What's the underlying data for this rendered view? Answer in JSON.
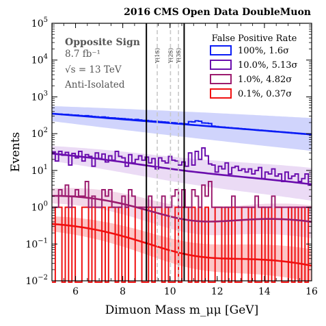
{
  "chart_data": {
    "type": "histogram",
    "title": "2016 CMS Open Data DoubleMuon",
    "xlabel": "Dimuon Mass m_μμ [GeV]",
    "ylabel": "Events",
    "xlim": [
      5,
      16
    ],
    "ylim": [
      0.01,
      100000
    ],
    "yscale": "log",
    "x_ticks": [
      6,
      8,
      10,
      12,
      14,
      16
    ],
    "y_ticks": [
      {
        "value": 0.01,
        "base": "10",
        "exp": "−2"
      },
      {
        "value": 0.1,
        "base": "10",
        "exp": "−1"
      },
      {
        "value": 1,
        "base": "10",
        "exp": "0"
      },
      {
        "value": 10,
        "base": "10",
        "exp": "1"
      },
      {
        "value": 100,
        "base": "10",
        "exp": "2"
      },
      {
        "value": 1000,
        "base": "10",
        "exp": "3"
      },
      {
        "value": 10000,
        "base": "10",
        "exp": "4"
      },
      {
        "value": 100000,
        "base": "10",
        "exp": "5"
      }
    ],
    "annotations": {
      "heading": "Opposite Sign",
      "lumi": "8.7 fb⁻¹",
      "sqrt_s": "√s = 13 TeV",
      "selection": "Anti-Isolated"
    },
    "legend_title": "False Positive Rate",
    "legend_position": "top-right",
    "signal_window": [
      9.0,
      10.6
    ],
    "resonances": [
      {
        "name": "Υ(1S)",
        "mass": 9.46
      },
      {
        "name": "Υ(2S)",
        "mass": 10.02
      },
      {
        "name": "Υ(3S)",
        "mass": 10.36
      }
    ],
    "series": [
      {
        "name": "100%, 1.6σ",
        "color": "#0a1cf5",
        "band": "#c8ccfb",
        "fit_start": 350,
        "fit_end": 95,
        "fit_wiggle": 0,
        "counts": [
          345,
          342,
          340,
          328,
          333,
          325,
          320,
          318,
          310,
          305,
          308,
          300,
          292,
          288,
          282,
          285,
          277,
          270,
          268,
          262,
          258,
          255,
          250,
          246,
          240,
          243,
          236,
          230,
          228,
          222,
          218,
          215,
          212,
          208,
          205,
          200,
          198,
          194,
          190,
          186,
          183,
          212,
          208,
          224,
          218,
          196,
          193,
          188,
          160,
          156,
          152,
          150,
          147,
          145,
          142,
          140,
          137,
          135,
          133,
          130,
          128,
          126,
          124,
          122,
          120,
          118,
          116,
          114,
          112,
          110,
          108,
          106,
          104,
          102,
          100,
          98,
          97,
          95
        ]
      },
      {
        "name": "10.0%, 5.13σ",
        "color": "#6a0dad",
        "band": "#e7d5f3",
        "fit_start": 28,
        "fit_end": 4,
        "fit_wiggle": 0.05,
        "counts": [
          32,
          18,
          33,
          26,
          31,
          14,
          29,
          22,
          33,
          18,
          27,
          24,
          13,
          30,
          21,
          28,
          17,
          25,
          19,
          33,
          24,
          22,
          13,
          27,
          16,
          20,
          25,
          19,
          23,
          16,
          21,
          11,
          22,
          18,
          16,
          24,
          19,
          18,
          14,
          17,
          13,
          30,
          14,
          33,
          20,
          41,
          25,
          15,
          14,
          9,
          13,
          11,
          16,
          8,
          12,
          13,
          10,
          11,
          9,
          11,
          8,
          10,
          12,
          6,
          9,
          8,
          11,
          7,
          8,
          5,
          9,
          6,
          7,
          8,
          5,
          6,
          8,
          4
        ]
      },
      {
        "name": "1.0%, 4.82σ",
        "color": "#9b1b6e",
        "band": "#f0d0e4",
        "fit_start": 1.7,
        "fit_end": 0.3,
        "fit_wiggle": 0.35,
        "counts": [
          1,
          1,
          3,
          2,
          4,
          1,
          2,
          3,
          2,
          2,
          5,
          1,
          2,
          1,
          1,
          3,
          2,
          3,
          1,
          1,
          1,
          2,
          1,
          3,
          2,
          1,
          1,
          1,
          1,
          2,
          1,
          1,
          1,
          2,
          1,
          1,
          2,
          3,
          1,
          3,
          1,
          1,
          3,
          2,
          1,
          4,
          2,
          5,
          1,
          1,
          1,
          1,
          1,
          1,
          2,
          1,
          1,
          1,
          1,
          1,
          1,
          2,
          1,
          1,
          1,
          1,
          2,
          1,
          1,
          1,
          1,
          1,
          1,
          1,
          1,
          1,
          1,
          1
        ]
      },
      {
        "name": "0.1%, 0.37σ",
        "color": "#f01010",
        "band": "#fbbcbc",
        "fit_start": 0.3,
        "fit_end": 0.02,
        "fit_wiggle": 0.3,
        "counts": [
          0,
          1,
          1,
          0,
          1,
          0,
          1,
          0,
          0,
          1,
          1,
          0,
          1,
          0,
          0,
          1,
          0,
          1,
          1,
          0,
          1,
          0,
          1,
          0,
          0,
          1,
          1,
          0,
          0,
          1,
          0,
          1,
          1,
          0,
          1,
          0,
          0,
          1,
          0,
          1,
          1,
          0,
          1,
          0,
          1,
          0,
          1,
          0,
          0,
          1,
          1,
          0,
          1,
          0,
          1,
          0,
          0,
          1,
          1,
          0,
          1,
          0,
          0,
          1,
          0,
          1,
          0,
          1,
          1,
          0,
          0,
          1,
          0,
          1,
          0,
          1,
          0,
          1
        ]
      }
    ]
  }
}
